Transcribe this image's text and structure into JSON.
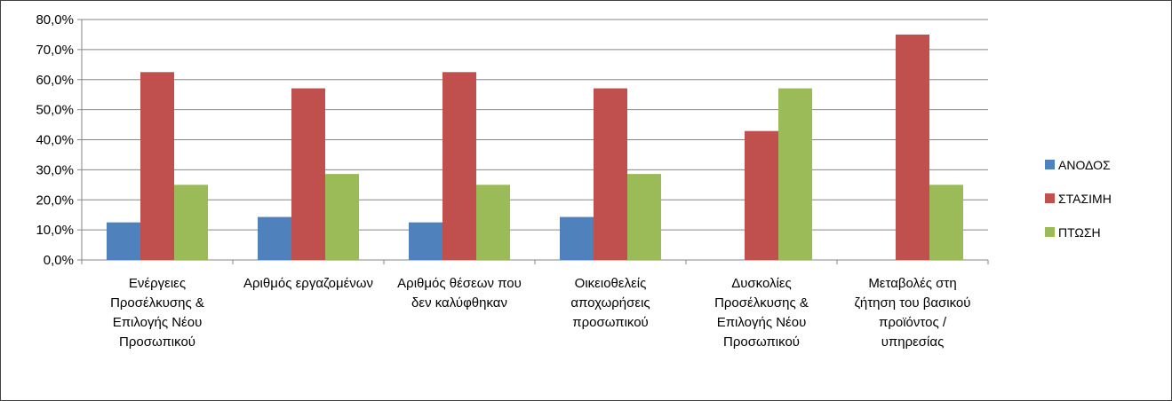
{
  "chart_data": {
    "type": "bar",
    "categories": [
      [
        "Ενέργειες",
        "Προσέλκυσης &",
        "Επιλογής Νέου",
        "Προσωπικού"
      ],
      [
        "Αριθμός εργαζομένων"
      ],
      [
        "Αριθμός θέσεων που",
        "δεν καλύφθηκαν"
      ],
      [
        "Οικειοθελείς",
        "αποχωρήσεις",
        "προσωπικού"
      ],
      [
        "Δυσκολίες",
        "Προσέλκυσης &",
        "Επιλογής Νέου",
        "Προσωπικού"
      ],
      [
        "Μεταβολές στη",
        "ζήτηση του βασικού",
        "προϊόντος /",
        "υπηρεσίας"
      ]
    ],
    "series": [
      {
        "name": "ΑΝΟΔΟΣ",
        "color": "#4F81BD",
        "values": [
          12.5,
          14.3,
          12.5,
          14.3,
          0,
          0
        ]
      },
      {
        "name": "ΣΤΑΣΙΜΗ",
        "color": "#C0504D",
        "values": [
          62.5,
          57.1,
          62.5,
          57.1,
          42.9,
          75.0
        ]
      },
      {
        "name": "ΠΤΩΣΗ",
        "color": "#9BBB59",
        "values": [
          25.0,
          28.6,
          25.0,
          28.6,
          57.1,
          25.0
        ]
      }
    ],
    "yticks": [
      "0,0%",
      "10,0%",
      "20,0%",
      "30,0%",
      "40,0%",
      "50,0%",
      "60,0%",
      "70,0%",
      "80,0%"
    ],
    "ylim": [
      0,
      80
    ],
    "grid": true,
    "legend_position": "right",
    "title": "",
    "xlabel": "",
    "ylabel": ""
  }
}
